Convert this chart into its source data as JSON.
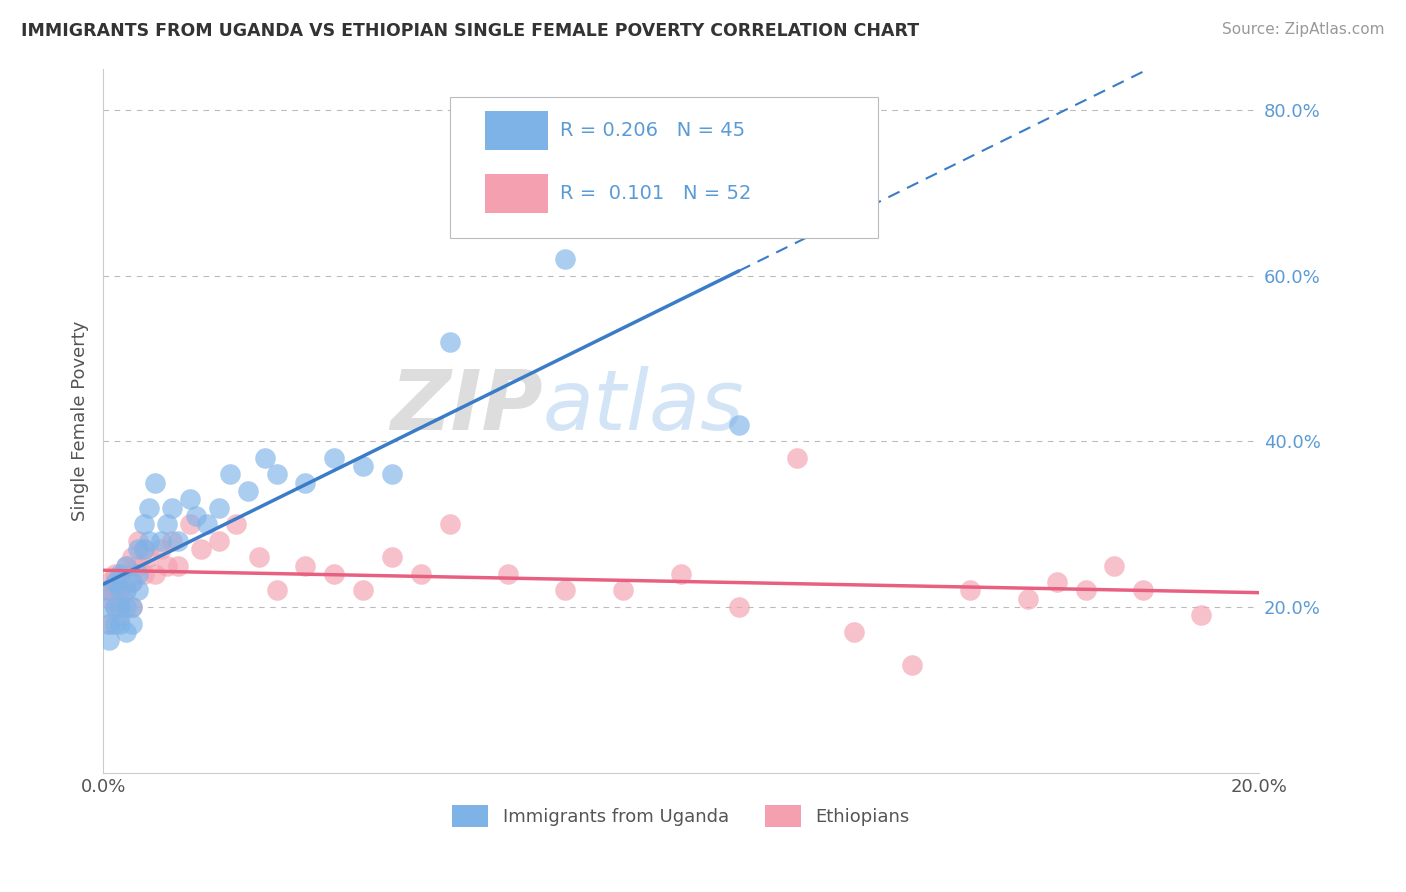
{
  "title": "IMMIGRANTS FROM UGANDA VS ETHIOPIAN SINGLE FEMALE POVERTY CORRELATION CHART",
  "source": "Source: ZipAtlas.com",
  "ylabel": "Single Female Poverty",
  "xlim": [
    0.0,
    0.2
  ],
  "ylim": [
    0.0,
    0.85
  ],
  "color_uganda": "#7EB3E8",
  "color_ethiopia": "#F4A0B0",
  "color_uganda_line": "#3A7CC8",
  "color_ethiopia_line": "#E86080",
  "watermark_zip": "ZIP",
  "watermark_atlas": "atlas",
  "background_color": "#FFFFFF",
  "legend1_r": "0.206",
  "legend1_n": "45",
  "legend2_r": "0.101",
  "legend2_n": "52",
  "uganda_x": [
    0.0,
    0.001,
    0.001,
    0.001,
    0.002,
    0.002,
    0.002,
    0.003,
    0.003,
    0.003,
    0.003,
    0.004,
    0.004,
    0.004,
    0.004,
    0.005,
    0.005,
    0.005,
    0.006,
    0.006,
    0.006,
    0.007,
    0.007,
    0.008,
    0.008,
    0.009,
    0.01,
    0.011,
    0.012,
    0.013,
    0.015,
    0.016,
    0.018,
    0.02,
    0.022,
    0.025,
    0.028,
    0.03,
    0.035,
    0.04,
    0.045,
    0.05,
    0.06,
    0.08,
    0.11
  ],
  "uganda_y": [
    0.2,
    0.22,
    0.18,
    0.16,
    0.23,
    0.2,
    0.18,
    0.24,
    0.22,
    0.2,
    0.18,
    0.25,
    0.22,
    0.2,
    0.17,
    0.23,
    0.2,
    0.18,
    0.27,
    0.24,
    0.22,
    0.3,
    0.27,
    0.32,
    0.28,
    0.35,
    0.28,
    0.3,
    0.32,
    0.28,
    0.33,
    0.31,
    0.3,
    0.32,
    0.36,
    0.34,
    0.38,
    0.36,
    0.35,
    0.38,
    0.37,
    0.36,
    0.52,
    0.62,
    0.42
  ],
  "ethiopia_x": [
    0.0,
    0.001,
    0.001,
    0.001,
    0.002,
    0.002,
    0.002,
    0.003,
    0.003,
    0.003,
    0.004,
    0.004,
    0.005,
    0.005,
    0.005,
    0.006,
    0.006,
    0.007,
    0.007,
    0.008,
    0.009,
    0.01,
    0.011,
    0.012,
    0.013,
    0.015,
    0.017,
    0.02,
    0.023,
    0.027,
    0.03,
    0.035,
    0.04,
    0.045,
    0.05,
    0.055,
    0.06,
    0.07,
    0.08,
    0.09,
    0.1,
    0.11,
    0.12,
    0.13,
    0.14,
    0.15,
    0.16,
    0.165,
    0.17,
    0.175,
    0.18,
    0.19
  ],
  "ethiopia_y": [
    0.22,
    0.23,
    0.21,
    0.18,
    0.24,
    0.22,
    0.2,
    0.23,
    0.21,
    0.19,
    0.25,
    0.22,
    0.26,
    0.23,
    0.2,
    0.28,
    0.25,
    0.27,
    0.24,
    0.26,
    0.24,
    0.27,
    0.25,
    0.28,
    0.25,
    0.3,
    0.27,
    0.28,
    0.3,
    0.26,
    0.22,
    0.25,
    0.24,
    0.22,
    0.26,
    0.24,
    0.3,
    0.24,
    0.22,
    0.22,
    0.24,
    0.2,
    0.38,
    0.17,
    0.13,
    0.22,
    0.21,
    0.23,
    0.22,
    0.25,
    0.22,
    0.19
  ]
}
